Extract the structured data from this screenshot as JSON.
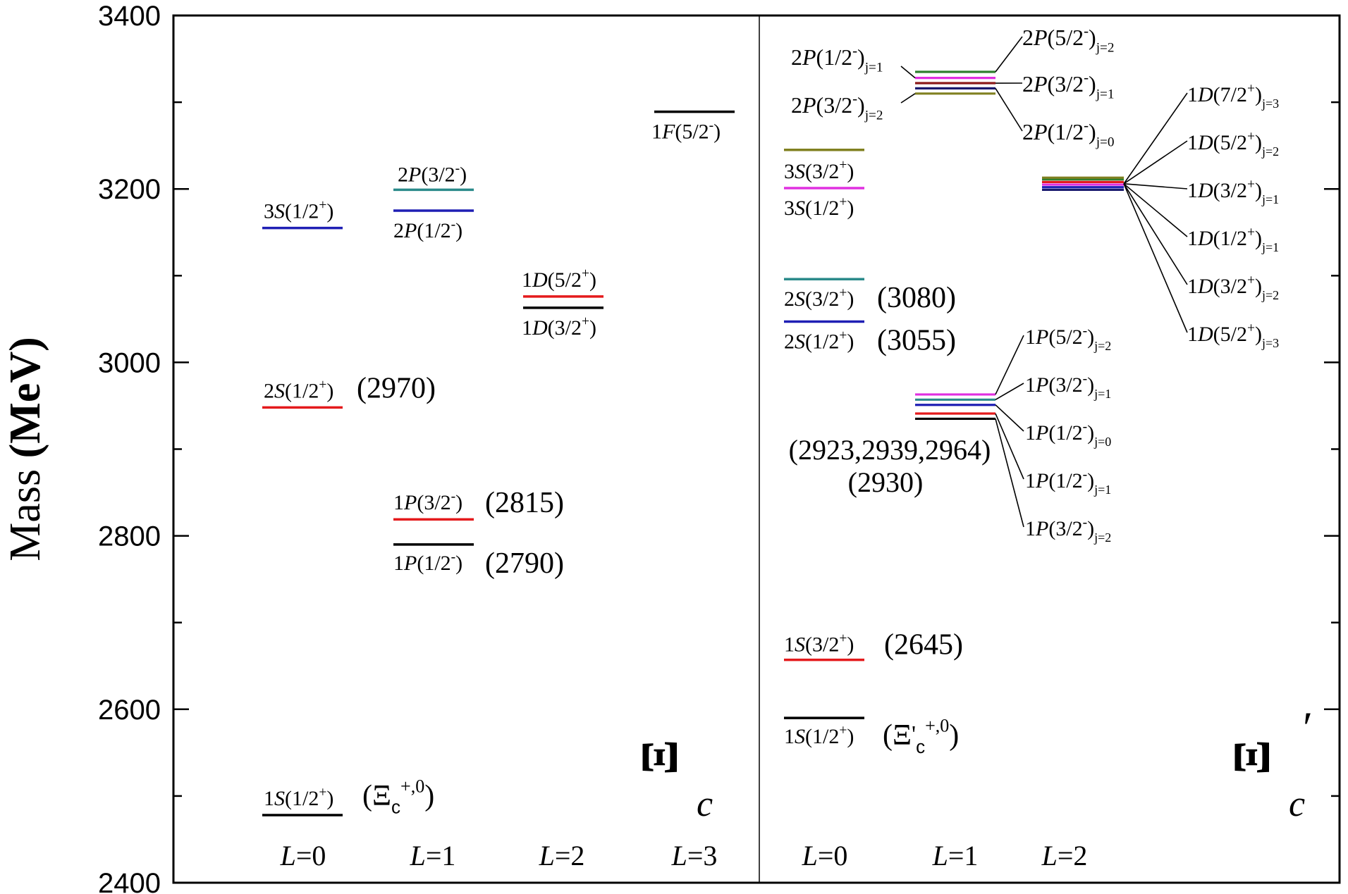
{
  "chart_data": {
    "type": "level-diagram",
    "ylabel": "Mass (MeV)",
    "ylim": [
      2400,
      3400
    ],
    "yticks": [
      2400,
      2600,
      2800,
      3000,
      3200,
      3400
    ],
    "colors": {
      "black": "#000000",
      "red": "#e41a1c",
      "blue": "#1f1fb4",
      "teal": "#2a8a8a",
      "olive": "#808020",
      "magenta": "#e030e0",
      "darkred": "#8b1a1a",
      "darkblue": "#1a1a6e",
      "green": "#2f7f2f"
    },
    "panels": [
      {
        "name": "Ξc",
        "symbol": "Ξ",
        "subscript": "c",
        "prime": "",
        "columns": [
          "L=0",
          "L=1",
          "L=2",
          "L=3"
        ],
        "levels": [
          {
            "L": 0,
            "mass": 2478,
            "color": "black",
            "state": "1S(1/2+)",
            "exp": "(Ξc+,0)"
          },
          {
            "L": 0,
            "mass": 2948,
            "color": "red",
            "state": "2S(1/2+)",
            "exp": "(2970)"
          },
          {
            "L": 0,
            "mass": 3155,
            "color": "blue",
            "state": "3S(1/2+)",
            "exp": ""
          },
          {
            "L": 1,
            "mass": 2790,
            "color": "black",
            "state": "1P(1/2-)",
            "exp": "(2790)"
          },
          {
            "L": 1,
            "mass": 2819,
            "color": "red",
            "state": "1P(3/2-)",
            "exp": "(2815)"
          },
          {
            "L": 1,
            "mass": 3175,
            "color": "blue",
            "state": "2P(1/2-)",
            "exp": ""
          },
          {
            "L": 1,
            "mass": 3199,
            "color": "teal",
            "state": "2P(3/2-)",
            "exp": ""
          },
          {
            "L": 2,
            "mass": 3063,
            "color": "black",
            "state": "1D(3/2+)",
            "exp": ""
          },
          {
            "L": 2,
            "mass": 3076,
            "color": "red",
            "state": "1D(5/2+)",
            "exp": ""
          },
          {
            "L": 3,
            "mass": 3289,
            "color": "black",
            "state": "1F(5/2-)",
            "exp": ""
          }
        ]
      },
      {
        "name": "Ξ'c",
        "symbol": "Ξ",
        "subscript": "c",
        "prime": "′",
        "columns": [
          "L=0",
          "L=1",
          "L=2"
        ],
        "levels": [
          {
            "L": 0,
            "mass": 2590,
            "color": "black",
            "state": "1S(1/2+)",
            "exp": "(Ξ'c+,0)"
          },
          {
            "L": 0,
            "mass": 2657,
            "color": "red",
            "state": "1S(3/2+)",
            "exp": "(2645)"
          },
          {
            "L": 0,
            "mass": 3047,
            "color": "blue",
            "state": "2S(1/2+)",
            "exp": "(3055)"
          },
          {
            "L": 0,
            "mass": 3096,
            "color": "teal",
            "state": "2S(3/2+)",
            "exp": "(3080)"
          },
          {
            "L": 0,
            "mass": 3201,
            "color": "magenta",
            "state": "3S(1/2+)",
            "exp": ""
          },
          {
            "L": 0,
            "mass": 3245,
            "color": "olive",
            "state": "3S(3/2+)",
            "exp": ""
          },
          {
            "L": 1,
            "mass": 2935,
            "color": "black",
            "state": "1P(3/2-)j=2"
          },
          {
            "L": 1,
            "mass": 2941,
            "color": "red",
            "state": "1P(1/2-)j=1"
          },
          {
            "L": 1,
            "mass": 2951,
            "color": "blue",
            "state": "1P(1/2-)j=0"
          },
          {
            "L": 1,
            "mass": 2957,
            "color": "teal",
            "state": "1P(3/2-)j=1"
          },
          {
            "L": 1,
            "mass": 2963,
            "color": "magenta",
            "state": "1P(5/2-)j=2"
          },
          {
            "L": 1,
            "mass": 3310,
            "color": "olive",
            "state": "2P(3/2-)j=2"
          },
          {
            "L": 1,
            "mass": 3316,
            "color": "darkblue",
            "state": "2P(1/2-)j=0"
          },
          {
            "L": 1,
            "mass": 3322,
            "color": "darkred",
            "state": "2P(3/2-)j=1"
          },
          {
            "L": 1,
            "mass": 3328,
            "color": "magenta",
            "state": "2P(1/2-)j=1"
          },
          {
            "L": 1,
            "mass": 3335,
            "color": "green",
            "state": "2P(5/2-)j=2"
          },
          {
            "L": 2,
            "mass": 3199,
            "color": "darkblue",
            "state": "1D(5/2+)j=3"
          },
          {
            "L": 2,
            "mass": 3202,
            "color": "blue",
            "state": "1D(3/2+)j=2"
          },
          {
            "L": 2,
            "mass": 3205,
            "color": "magenta",
            "state": "1D(1/2+)j=1"
          },
          {
            "L": 2,
            "mass": 3208,
            "color": "red",
            "state": "1D(3/2+)j=1"
          },
          {
            "L": 2,
            "mass": 3211,
            "color": "green",
            "state": "1D(5/2+)j=2"
          },
          {
            "L": 2,
            "mass": 3213,
            "color": "olive",
            "state": "1D(7/2+)j=3"
          }
        ],
        "group_labels": [
          {
            "text": "(2923,2939,2964)"
          },
          {
            "text": "(2930)"
          }
        ]
      }
    ],
    "annotations": {
      "p2_left": [
        {
          "pre": "2P(1/2",
          "sup": "-",
          "post": ")",
          "sub": "j=1"
        },
        {
          "pre": "2P(3/2",
          "sup": "-",
          "post": ")",
          "sub": "j=2"
        }
      ],
      "p2_right": [
        {
          "pre": "2P(5/2",
          "sup": "-",
          "post": ")",
          "sub": "j=2"
        },
        {
          "pre": "2P(3/2",
          "sup": "-",
          "post": ")",
          "sub": "j=1"
        },
        {
          "pre": "2P(1/2",
          "sup": "-",
          "post": ")",
          "sub": "j=0"
        }
      ],
      "p1_right": [
        {
          "pre": "1P(5/2",
          "sup": "-",
          "post": ")",
          "sub": "j=2"
        },
        {
          "pre": "1P(3/2",
          "sup": "-",
          "post": ")",
          "sub": "j=1"
        },
        {
          "pre": "1P(1/2",
          "sup": "-",
          "post": ")",
          "sub": "j=0"
        },
        {
          "pre": "1P(1/2",
          "sup": "-",
          "post": ")",
          "sub": "j=1"
        },
        {
          "pre": "1P(3/2",
          "sup": "-",
          "post": ")",
          "sub": "j=2"
        }
      ],
      "d1_right": [
        {
          "pre": "1D(7/2",
          "sup": "+",
          "post": ")",
          "sub": "j=3"
        },
        {
          "pre": "1D(5/2",
          "sup": "+",
          "post": ")",
          "sub": "j=2"
        },
        {
          "pre": "1D(3/2",
          "sup": "+",
          "post": ")",
          "sub": "j=1"
        },
        {
          "pre": "1D(1/2",
          "sup": "+",
          "post": ")",
          "sub": "j=1"
        },
        {
          "pre": "1D(3/2",
          "sup": "+",
          "post": ")",
          "sub": "j=2"
        },
        {
          "pre": "1D(5/2",
          "sup": "+",
          "post": ")",
          "sub": "j=3"
        }
      ]
    }
  }
}
